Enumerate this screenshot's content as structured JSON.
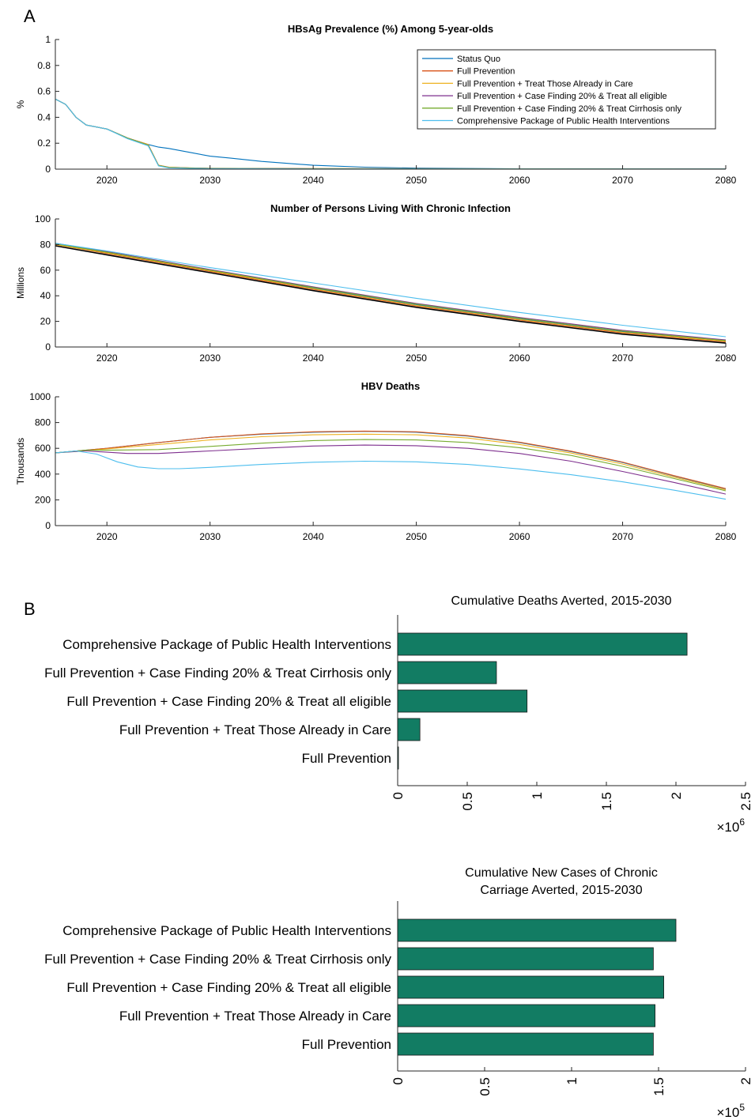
{
  "panel_labels": [
    "A",
    "B"
  ],
  "colors": {
    "status_quo": "#0072BD",
    "full_prevention": "#D95319",
    "full_prevention_treat_care": "#EDB120",
    "full_prevention_cf_all": "#7E2F8E",
    "full_prevention_cf_cirrhosis": "#77AC30",
    "comprehensive": "#4DBEEE",
    "bar_fill": "#127C63"
  },
  "legend": [
    "Status Quo",
    "Full Prevention",
    "Full Prevention + Treat Those Already in Care",
    "Full Prevention + Case Finding 20% & Treat all eligible",
    "Full Prevention + Case Finding 20% & Treat Cirrhosis only",
    "Comprehensive Package of Public Health Interventions"
  ],
  "chart_data": [
    {
      "type": "line",
      "title": "HBsAg Prevalence (%) Among 5-year-olds",
      "xlabel": "",
      "ylabel": "%",
      "xlim": [
        2015,
        2080
      ],
      "ylim": [
        0,
        1
      ],
      "xticks": [
        2020,
        2030,
        2040,
        2050,
        2060,
        2070,
        2080
      ],
      "yticks": [
        0,
        0.2,
        0.4,
        0.6,
        0.8,
        1
      ],
      "ytick_labels": [
        "0",
        "0.2",
        "0.4",
        "0.6",
        "0.8",
        "1"
      ],
      "legend_position": "top-right",
      "series": [
        {
          "name": "Status Quo",
          "x": [
            2015,
            2016,
            2017,
            2018,
            2020,
            2022,
            2024,
            2025,
            2026,
            2028,
            2030,
            2032,
            2035,
            2040,
            2045,
            2050,
            2060,
            2080
          ],
          "y": [
            0.54,
            0.5,
            0.4,
            0.34,
            0.31,
            0.24,
            0.19,
            0.17,
            0.16,
            0.13,
            0.1,
            0.085,
            0.06,
            0.03,
            0.015,
            0.008,
            0.003,
            0.001
          ]
        },
        {
          "name": "Full Prevention",
          "x": [
            2015,
            2016,
            2017,
            2018,
            2020,
            2022,
            2024,
            2025,
            2026,
            2028,
            2030,
            2040,
            2080
          ],
          "y": [
            0.54,
            0.5,
            0.4,
            0.34,
            0.31,
            0.24,
            0.19,
            0.03,
            0.015,
            0.01,
            0.007,
            0.004,
            0.001
          ]
        },
        {
          "name": "Full Prevention + Treat Those Already in Care",
          "x": [
            2015,
            2016,
            2017,
            2018,
            2020,
            2022,
            2024,
            2025,
            2026,
            2028,
            2030,
            2040,
            2080
          ],
          "y": [
            0.54,
            0.5,
            0.4,
            0.34,
            0.31,
            0.24,
            0.19,
            0.03,
            0.015,
            0.01,
            0.007,
            0.004,
            0.001
          ]
        },
        {
          "name": "Full Prevention + Case Finding 20% & Treat all eligible",
          "x": [
            2015,
            2016,
            2017,
            2018,
            2020,
            2022,
            2024,
            2025,
            2026,
            2028,
            2030,
            2040,
            2080
          ],
          "y": [
            0.54,
            0.5,
            0.4,
            0.34,
            0.31,
            0.24,
            0.185,
            0.028,
            0.013,
            0.009,
            0.006,
            0.003,
            0.001
          ]
        },
        {
          "name": "Full Prevention + Case Finding 20% & Treat Cirrhosis only",
          "x": [
            2015,
            2016,
            2017,
            2018,
            2020,
            2022,
            2024,
            2025,
            2026,
            2028,
            2030,
            2040,
            2080
          ],
          "y": [
            0.54,
            0.5,
            0.4,
            0.34,
            0.31,
            0.24,
            0.185,
            0.028,
            0.013,
            0.009,
            0.006,
            0.003,
            0.001
          ]
        },
        {
          "name": "Comprehensive Package of Public Health Interventions",
          "x": [
            2015,
            2016,
            2017,
            2018,
            2020,
            2022,
            2024,
            2025,
            2026,
            2028,
            2030,
            2040,
            2080
          ],
          "y": [
            0.54,
            0.5,
            0.4,
            0.34,
            0.31,
            0.235,
            0.18,
            0.025,
            0.01,
            0.006,
            0.004,
            0.002,
            0.001
          ]
        }
      ]
    },
    {
      "type": "line",
      "title": "Number of Persons Living With Chronic Infection",
      "xlabel": "",
      "ylabel": "Millions",
      "xlim": [
        2015,
        2080
      ],
      "ylim": [
        0,
        100
      ],
      "xticks": [
        2020,
        2030,
        2040,
        2050,
        2060,
        2070,
        2080
      ],
      "yticks": [
        0,
        20,
        40,
        60,
        80,
        100
      ],
      "ytick_labels": [
        "0",
        "20",
        "40",
        "60",
        "80",
        "100"
      ],
      "series": [
        {
          "name": "Status Quo",
          "x": [
            2015,
            2020,
            2030,
            2040,
            2050,
            2060,
            2070,
            2080
          ],
          "y": [
            81,
            74,
            60,
            46,
            33,
            22,
            12,
            5
          ]
        },
        {
          "name": "Full Prevention",
          "x": [
            2015,
            2020,
            2030,
            2040,
            2050,
            2060,
            2070,
            2080
          ],
          "y": [
            80,
            73,
            59,
            45,
            32,
            21,
            11,
            4
          ]
        },
        {
          "name": "Full Prevention + Treat Those Already in Care",
          "x": [
            2015,
            2020,
            2030,
            2040,
            2050,
            2060,
            2070,
            2080
          ],
          "y": [
            80,
            73.5,
            59.5,
            45.5,
            32.5,
            21.5,
            11.5,
            4.5
          ]
        },
        {
          "name": "Full Prevention + Case Finding 20% & Treat all eligible",
          "x": [
            2015,
            2020,
            2030,
            2040,
            2050,
            2060,
            2070,
            2080
          ],
          "y": [
            81,
            74.5,
            60.5,
            47,
            34,
            23,
            13,
            5.5
          ]
        },
        {
          "name": "Full Prevention + Case Finding 20% & Treat Cirrhosis only",
          "x": [
            2015,
            2020,
            2030,
            2040,
            2050,
            2060,
            2070,
            2080
          ],
          "y": [
            80.5,
            74,
            60,
            46.5,
            33.5,
            22.5,
            12.5,
            5
          ]
        },
        {
          "name": "Comprehensive Package of Public Health Interventions",
          "x": [
            2015,
            2020,
            2030,
            2040,
            2050,
            2060,
            2070,
            2080
          ],
          "y": [
            81,
            75,
            62,
            50,
            38,
            27,
            17,
            8
          ]
        },
        {
          "name": "",
          "x": [
            2015,
            2020,
            2030,
            2040,
            2050,
            2060,
            2070,
            2080
          ],
          "y": [
            79,
            72,
            58,
            44,
            31,
            20,
            10,
            3
          ]
        }
      ]
    },
    {
      "type": "line",
      "title": "HBV Deaths",
      "xlabel": "",
      "ylabel": "Thousands",
      "xlim": [
        2015,
        2080
      ],
      "ylim": [
        0,
        1000
      ],
      "xticks": [
        2020,
        2030,
        2040,
        2050,
        2060,
        2070,
        2080
      ],
      "yticks": [
        0,
        200,
        400,
        600,
        800,
        1000
      ],
      "ytick_labels": [
        "0",
        "200",
        "400",
        "600",
        "800",
        "1000"
      ],
      "series": [
        {
          "name": "Status Quo",
          "x": [
            2015,
            2020,
            2025,
            2030,
            2035,
            2040,
            2045,
            2050,
            2055,
            2060,
            2065,
            2070,
            2075,
            2080
          ],
          "y": [
            565,
            600,
            645,
            685,
            710,
            725,
            732,
            725,
            695,
            645,
            575,
            490,
            385,
            285
          ]
        },
        {
          "name": "Full Prevention",
          "x": [
            2015,
            2020,
            2025,
            2030,
            2035,
            2040,
            2045,
            2050,
            2055,
            2060,
            2065,
            2070,
            2075,
            2080
          ],
          "y": [
            565,
            600,
            645,
            685,
            712,
            728,
            734,
            728,
            698,
            648,
            578,
            493,
            388,
            288
          ]
        },
        {
          "name": "Full Prevention + Treat Those Already in Care",
          "x": [
            2015,
            2020,
            2025,
            2030,
            2035,
            2040,
            2045,
            2050,
            2055,
            2060,
            2065,
            2070,
            2075,
            2080
          ],
          "y": [
            565,
            595,
            630,
            665,
            690,
            705,
            710,
            705,
            680,
            630,
            563,
            478,
            376,
            278
          ]
        },
        {
          "name": "Full Prevention + Case Finding 20% & Treat all eligible",
          "x": [
            2015,
            2018,
            2020,
            2022,
            2025,
            2030,
            2035,
            2040,
            2045,
            2050,
            2055,
            2060,
            2065,
            2070,
            2075,
            2080
          ],
          "y": [
            565,
            580,
            570,
            560,
            560,
            580,
            600,
            618,
            625,
            620,
            600,
            560,
            500,
            420,
            335,
            245
          ]
        },
        {
          "name": "Full Prevention + Case Finding 20% & Treat Cirrhosis only",
          "x": [
            2015,
            2018,
            2020,
            2025,
            2030,
            2035,
            2040,
            2045,
            2050,
            2055,
            2060,
            2065,
            2070,
            2075,
            2080
          ],
          "y": [
            565,
            585,
            585,
            590,
            615,
            640,
            660,
            668,
            665,
            645,
            605,
            545,
            460,
            365,
            270
          ]
        },
        {
          "name": "Comprehensive Package of Public Health Interventions",
          "x": [
            2015,
            2017,
            2019,
            2021,
            2023,
            2025,
            2027,
            2030,
            2035,
            2040,
            2045,
            2050,
            2055,
            2060,
            2065,
            2070,
            2075,
            2080
          ],
          "y": [
            565,
            580,
            555,
            495,
            455,
            442,
            442,
            452,
            475,
            492,
            500,
            495,
            475,
            440,
            395,
            340,
            275,
            205
          ]
        }
      ]
    },
    {
      "type": "bar",
      "orientation": "horizontal",
      "title": "Cumulative Deaths Averted, 2015-2030",
      "categories": [
        "Comprehensive Package of Public Health Interventions",
        "Full Prevention + Case Finding 20% & Treat Cirrhosis only",
        "Full Prevention + Case Finding 20% & Treat all eligible",
        "Full Prevention + Treat Those Already in Care",
        "Full Prevention"
      ],
      "values": [
        2080000,
        710000,
        930000,
        160000,
        3000
      ],
      "xlim": [
        0,
        2500000
      ],
      "xticks": [
        0,
        500000,
        1000000,
        1500000,
        2000000,
        2500000
      ],
      "xtick_labels": [
        "0",
        "0.5",
        "1",
        "1.5",
        "2",
        "2.5"
      ],
      "xscale_label": "×10",
      "xscale_exponent": "6"
    },
    {
      "type": "bar",
      "orientation": "horizontal",
      "title": [
        "Cumulative New Cases of Chronic",
        "Carriage Averted, 2015-2030"
      ],
      "categories": [
        "Comprehensive Package of Public Health Interventions",
        "Full Prevention + Case Finding 20% & Treat Cirrhosis only",
        "Full Prevention + Case Finding 20% & Treat all eligible",
        "Full Prevention + Treat Those Already in Care",
        "Full Prevention"
      ],
      "values": [
        160000,
        147000,
        153000,
        148000,
        147000
      ],
      "xlim": [
        0,
        200000
      ],
      "xticks": [
        0,
        50000,
        100000,
        150000,
        200000
      ],
      "xtick_labels": [
        "0",
        "0.5",
        "1",
        "1.5",
        "2"
      ],
      "xscale_label": "×10",
      "xscale_exponent": "5"
    }
  ]
}
